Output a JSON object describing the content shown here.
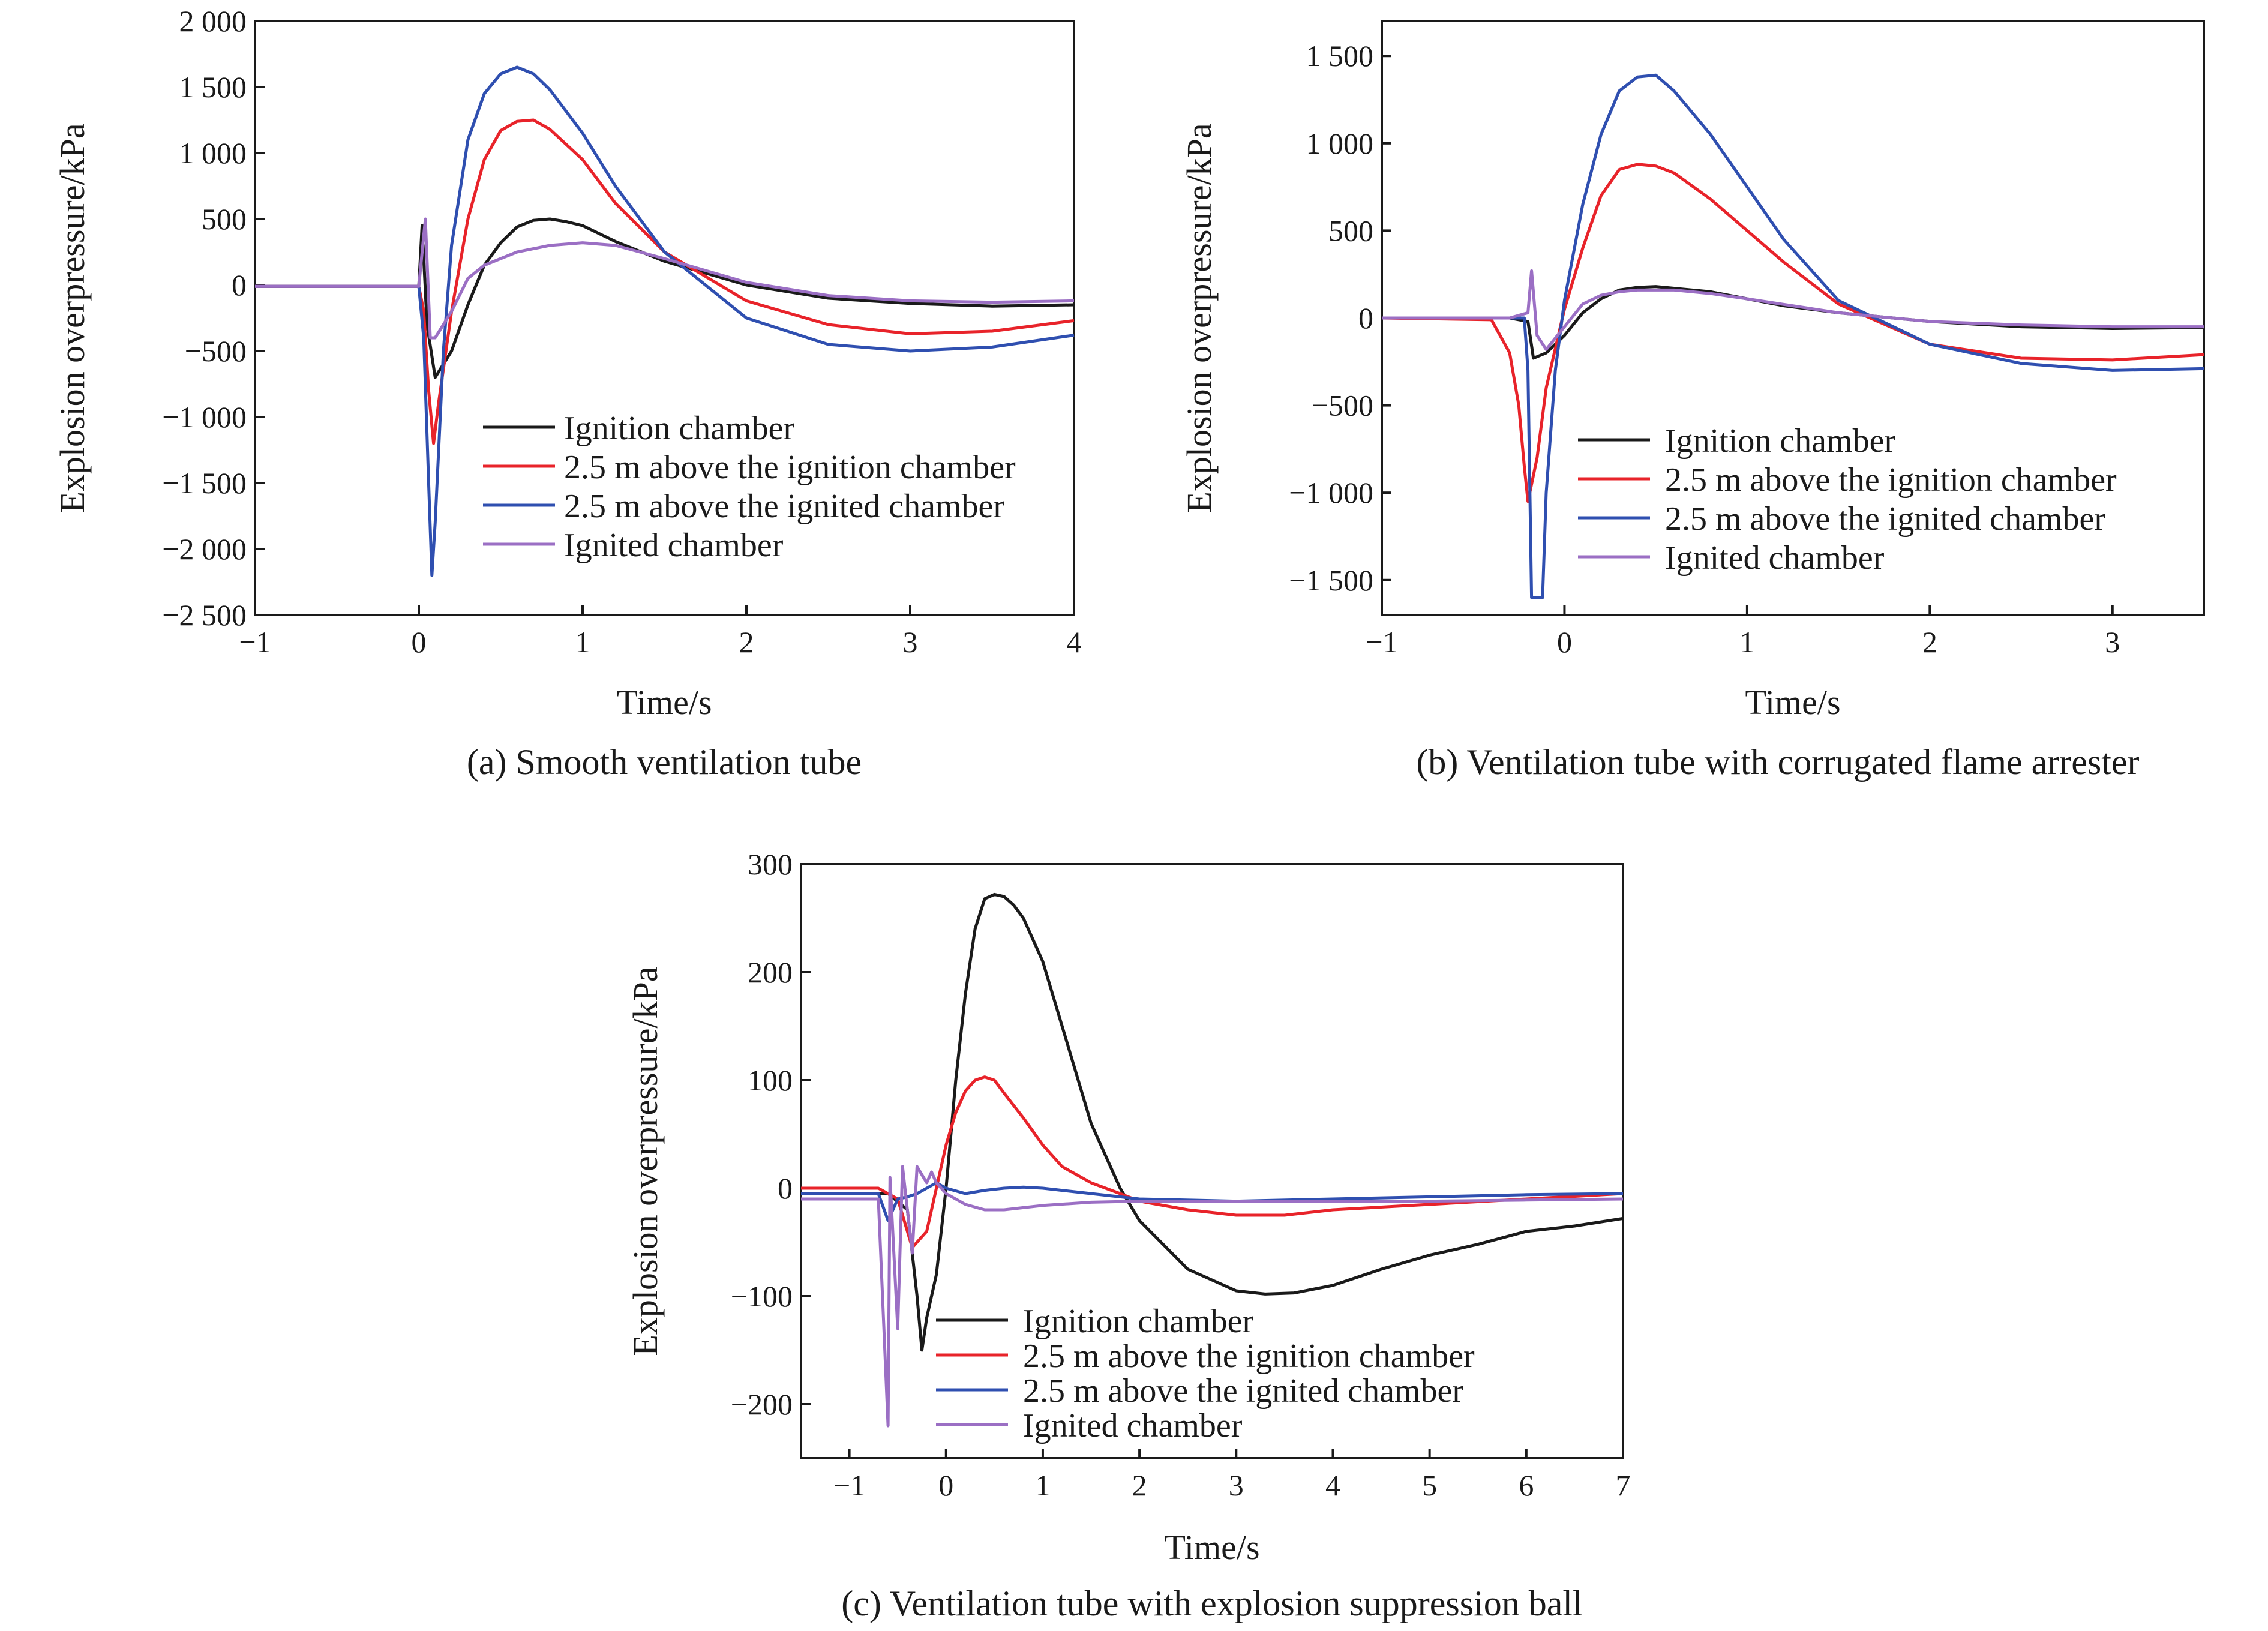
{
  "figure": {
    "colors": {
      "ignition_chamber": "#1a1a1a",
      "above_ignition": "#e8232a",
      "above_ignited": "#2f4fb0",
      "ignited_chamber": "#9b6fc4",
      "axes": "#1a1a1a"
    }
  },
  "chart_data": [
    {
      "type": "line",
      "caption": "(a) Smooth ventilation tube",
      "xlabel": "Time/s",
      "ylabel": "Explosion overpressure/kPa",
      "xlim": [
        -1,
        4
      ],
      "ylim": [
        -2500,
        2000
      ],
      "xticks": [
        -1,
        0,
        1,
        2,
        3,
        4
      ],
      "xtick_labels": [
        "−1",
        "0",
        "1",
        "2",
        "3",
        "4"
      ],
      "yticks": [
        -2500,
        -2000,
        -1500,
        -1000,
        -500,
        0,
        500,
        1000,
        1500,
        2000
      ],
      "ytick_labels": [
        "−2 500",
        "−2 000",
        "−1 500",
        "−1 000",
        "−500",
        "0",
        "500",
        "1 000",
        "1 500",
        "2 000"
      ],
      "legend_position": "center",
      "series": [
        {
          "name": "Ignition chamber",
          "color": "#1a1a1a",
          "x": [
            -1,
            0,
            0.02,
            0.05,
            0.1,
            0.2,
            0.3,
            0.4,
            0.5,
            0.6,
            0.7,
            0.8,
            0.9,
            1.0,
            1.2,
            1.5,
            2.0,
            2.5,
            3.0,
            3.5,
            4.0
          ],
          "y": [
            -10,
            -10,
            450,
            -300,
            -700,
            -500,
            -150,
            150,
            320,
            440,
            490,
            500,
            480,
            450,
            330,
            180,
            0,
            -100,
            -140,
            -160,
            -150
          ]
        },
        {
          "name": "2.5 m above the ignition chamber",
          "color": "#e8232a",
          "x": [
            -1,
            0,
            0.03,
            0.06,
            0.09,
            0.12,
            0.2,
            0.3,
            0.4,
            0.5,
            0.6,
            0.7,
            0.8,
            1.0,
            1.2,
            1.5,
            2.0,
            2.5,
            3.0,
            3.5,
            4.0
          ],
          "y": [
            -10,
            -10,
            -200,
            -800,
            -1200,
            -900,
            -200,
            500,
            950,
            1170,
            1240,
            1250,
            1180,
            950,
            620,
            250,
            -120,
            -300,
            -370,
            -350,
            -270
          ]
        },
        {
          "name": "2.5 m above the ignited chamber",
          "color": "#2f4fb0",
          "x": [
            -1,
            0,
            0.03,
            0.06,
            0.08,
            0.1,
            0.15,
            0.2,
            0.3,
            0.4,
            0.5,
            0.6,
            0.7,
            0.8,
            1.0,
            1.2,
            1.5,
            2.0,
            2.5,
            3.0,
            3.5,
            4.0
          ],
          "y": [
            -10,
            -10,
            -400,
            -1500,
            -2200,
            -1800,
            -500,
            300,
            1100,
            1450,
            1600,
            1650,
            1600,
            1480,
            1150,
            750,
            250,
            -250,
            -450,
            -500,
            -470,
            -380
          ]
        },
        {
          "name": "Ignited chamber",
          "color": "#9b6fc4",
          "x": [
            -1,
            0,
            0.04,
            0.07,
            0.1,
            0.15,
            0.2,
            0.3,
            0.4,
            0.6,
            0.8,
            1.0,
            1.2,
            1.5,
            2.0,
            2.5,
            3.0,
            3.5,
            4.0
          ],
          "y": [
            -10,
            -10,
            500,
            -400,
            -400,
            -300,
            -200,
            50,
            150,
            250,
            300,
            320,
            300,
            200,
            20,
            -80,
            -120,
            -130,
            -120
          ]
        }
      ]
    },
    {
      "type": "line",
      "caption": "(b) Ventilation tube with corrugated flame arrester",
      "xlabel": "Time/s",
      "ylabel": "Explosion overpressure/kPa",
      "xlim": [
        -1,
        3.5
      ],
      "ylim": [
        -1700,
        1700
      ],
      "xticks": [
        -1,
        0,
        1,
        2,
        3
      ],
      "xtick_labels": [
        "−1",
        "0",
        "1",
        "2",
        "3"
      ],
      "yticks": [
        -1500,
        -1000,
        -500,
        0,
        500,
        1000,
        1500
      ],
      "ytick_labels": [
        "−1 500",
        "−1 000",
        "−500",
        "0",
        "500",
        "1 000",
        "1 500"
      ],
      "legend_position": "lower center",
      "series": [
        {
          "name": "Ignition chamber",
          "color": "#1a1a1a",
          "x": [
            -1,
            -0.3,
            -0.2,
            -0.17,
            -0.1,
            0,
            0.1,
            0.2,
            0.3,
            0.4,
            0.5,
            0.6,
            0.8,
            1.0,
            1.2,
            1.5,
            2.0,
            2.5,
            3.0,
            3.5
          ],
          "y": [
            0,
            0,
            -20,
            -230,
            -200,
            -100,
            30,
            110,
            160,
            175,
            180,
            170,
            150,
            110,
            70,
            30,
            -20,
            -50,
            -60,
            -55
          ]
        },
        {
          "name": "2.5 m above the ignition chamber",
          "color": "#e8232a",
          "x": [
            -1,
            -0.4,
            -0.3,
            -0.25,
            -0.22,
            -0.2,
            -0.15,
            -0.1,
            0,
            0.1,
            0.2,
            0.3,
            0.4,
            0.5,
            0.6,
            0.8,
            1.0,
            1.2,
            1.5,
            2.0,
            2.5,
            3.0,
            3.5
          ],
          "y": [
            0,
            -10,
            -200,
            -500,
            -850,
            -1050,
            -800,
            -400,
            50,
            400,
            700,
            850,
            880,
            870,
            830,
            680,
            500,
            320,
            80,
            -150,
            -230,
            -240,
            -210
          ]
        },
        {
          "name": "2.5 m above the ignited chamber",
          "color": "#2f4fb0",
          "x": [
            -1,
            -0.22,
            -0.2,
            -0.18,
            -0.12,
            -0.1,
            -0.05,
            0,
            0.1,
            0.2,
            0.3,
            0.4,
            0.5,
            0.6,
            0.8,
            1.0,
            1.2,
            1.5,
            2.0,
            2.5,
            3.0,
            3.5
          ],
          "y": [
            0,
            0,
            -300,
            -1600,
            -1600,
            -1000,
            -300,
            100,
            650,
            1050,
            1300,
            1380,
            1390,
            1300,
            1050,
            750,
            450,
            100,
            -150,
            -260,
            -300,
            -290
          ]
        },
        {
          "name": "Ignited chamber",
          "color": "#9b6fc4",
          "x": [
            -1,
            -0.3,
            -0.2,
            -0.18,
            -0.15,
            -0.1,
            0,
            0.1,
            0.2,
            0.3,
            0.4,
            0.6,
            0.8,
            1.0,
            1.5,
            2.0,
            2.5,
            3.0,
            3.5
          ],
          "y": [
            0,
            0,
            30,
            270,
            -100,
            -180,
            -50,
            80,
            130,
            150,
            160,
            160,
            140,
            110,
            30,
            -20,
            -40,
            -50,
            -50
          ]
        }
      ]
    },
    {
      "type": "line",
      "caption": "(c) Ventilation tube with explosion suppression ball",
      "xlabel": "Time/s",
      "ylabel": "Explosion overpressure/kPa",
      "xlim": [
        -1.5,
        7
      ],
      "ylim": [
        -250,
        300
      ],
      "xticks": [
        -1,
        0,
        1,
        2,
        3,
        4,
        5,
        6,
        7
      ],
      "xtick_labels": [
        "−1",
        "0",
        "1",
        "2",
        "3",
        "4",
        "5",
        "6",
        "7"
      ],
      "yticks": [
        -200,
        -100,
        0,
        100,
        200,
        300
      ],
      "ytick_labels": [
        "−200",
        "−100",
        "0",
        "100",
        "200",
        "300"
      ],
      "legend_position": "lower left",
      "series": [
        {
          "name": "Ignition chamber",
          "color": "#1a1a1a",
          "x": [
            -1.5,
            -0.6,
            -0.4,
            -0.3,
            -0.25,
            -0.2,
            -0.1,
            0,
            0.1,
            0.2,
            0.3,
            0.4,
            0.5,
            0.6,
            0.7,
            0.8,
            1.0,
            1.2,
            1.5,
            1.8,
            2.0,
            2.5,
            3.0,
            3.3,
            3.6,
            4.0,
            4.5,
            5.0,
            5.5,
            6.0,
            6.5,
            7.0
          ],
          "y": [
            -5,
            -5,
            -20,
            -100,
            -150,
            -120,
            -80,
            0,
            100,
            180,
            240,
            268,
            272,
            270,
            262,
            250,
            210,
            150,
            60,
            0,
            -30,
            -75,
            -95,
            -98,
            -97,
            -90,
            -75,
            -62,
            -52,
            -40,
            -35,
            -28
          ]
        },
        {
          "name": "2.5 m above the ignition chamber",
          "color": "#e8232a",
          "x": [
            -1.5,
            -0.7,
            -0.5,
            -0.35,
            -0.3,
            -0.2,
            -0.1,
            0,
            0.1,
            0.2,
            0.3,
            0.4,
            0.5,
            0.6,
            0.8,
            1.0,
            1.2,
            1.5,
            1.8,
            2.0,
            2.5,
            3.0,
            3.5,
            4.0,
            5.0,
            6.0,
            7.0
          ],
          "y": [
            0,
            0,
            -10,
            -55,
            -50,
            -40,
            0,
            40,
            70,
            90,
            100,
            103,
            100,
            88,
            65,
            40,
            20,
            5,
            -5,
            -12,
            -20,
            -25,
            -25,
            -20,
            -15,
            -10,
            -5
          ]
        },
        {
          "name": "2.5 m above the ignited chamber",
          "color": "#2f4fb0",
          "x": [
            -1.5,
            -0.7,
            -0.6,
            -0.5,
            -0.4,
            -0.3,
            -0.2,
            -0.1,
            0,
            0.2,
            0.4,
            0.6,
            0.8,
            1.0,
            1.5,
            2.0,
            3.0,
            4.0,
            5.0,
            6.0,
            7.0
          ],
          "y": [
            -5,
            -5,
            -30,
            -10,
            -8,
            -5,
            0,
            5,
            0,
            -5,
            -2,
            0,
            1,
            0,
            -5,
            -10,
            -12,
            -10,
            -8,
            -6,
            -5
          ]
        },
        {
          "name": "Ignited chamber",
          "color": "#9b6fc4",
          "x": [
            -1.5,
            -0.7,
            -0.6,
            -0.58,
            -0.5,
            -0.45,
            -0.35,
            -0.3,
            -0.2,
            -0.15,
            -0.1,
            0,
            0.2,
            0.4,
            0.6,
            0.8,
            1.0,
            1.5,
            2.0,
            3.0,
            4.0,
            5.0,
            6.0,
            7.0
          ],
          "y": [
            -10,
            -10,
            -220,
            10,
            -130,
            20,
            -60,
            20,
            5,
            15,
            5,
            -5,
            -15,
            -20,
            -20,
            -18,
            -16,
            -13,
            -12,
            -12,
            -12,
            -12,
            -11,
            -10
          ]
        }
      ]
    }
  ]
}
